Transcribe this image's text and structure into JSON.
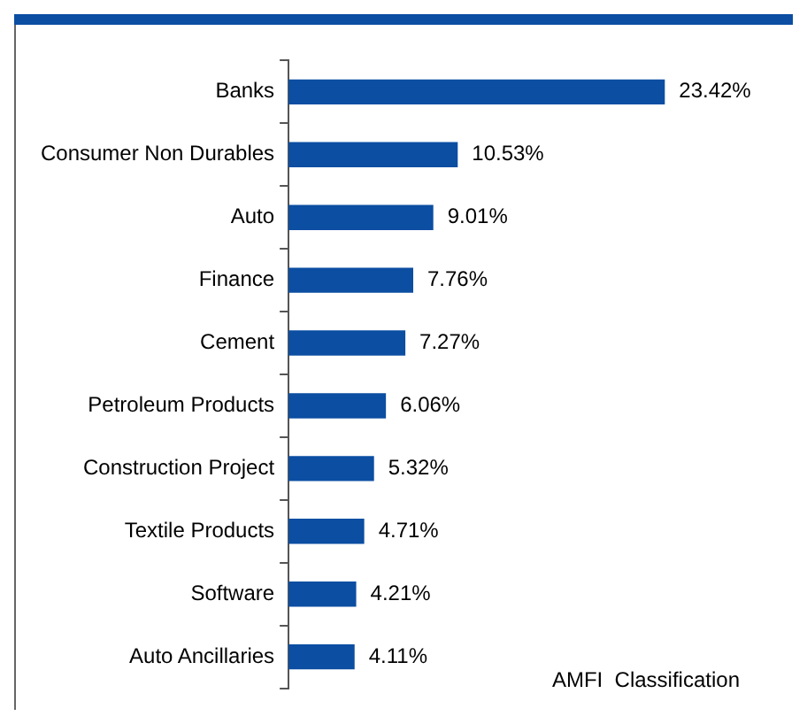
{
  "chart_data": {
    "type": "bar",
    "orientation": "horizontal",
    "categories": [
      "Banks",
      "Consumer Non Durables",
      "Auto",
      "Finance",
      "Cement",
      "Petroleum Products",
      "Construction Project",
      "Textile Products",
      "Software",
      "Auto Ancillaries"
    ],
    "values": [
      23.42,
      10.53,
      9.01,
      7.76,
      7.27,
      6.06,
      5.32,
      4.71,
      4.21,
      4.11
    ],
    "value_labels": [
      "23.42%",
      "10.53%",
      "9.01%",
      "7.76%",
      "7.27%",
      "6.06%",
      "5.32%",
      "4.71%",
      "4.21%",
      "4.11%"
    ],
    "color": "#0b4ea2",
    "legend": false,
    "annotations": [
      "AMFI  Classification"
    ]
  }
}
